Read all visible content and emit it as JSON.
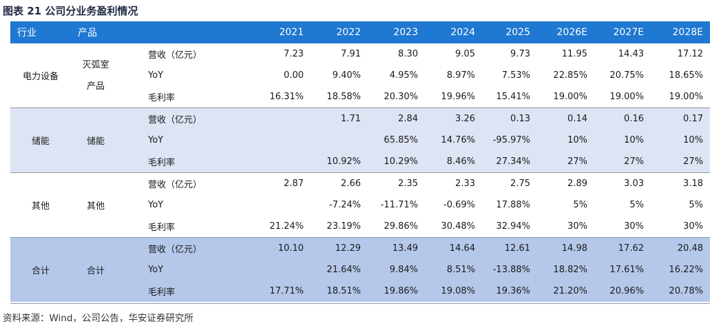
{
  "title": "图表 21  公司分业务盈利情况",
  "headers": {
    "industry": "行业",
    "product": "产品",
    "years": [
      "2021",
      "2022",
      "2023",
      "2024",
      "2025",
      "2026E",
      "2027E",
      "2028E"
    ]
  },
  "groups": [
    {
      "industry": "电力设备",
      "product_lines": [
        "灭弧室",
        "产品"
      ],
      "rows": [
        {
          "metric": "营收（亿元）",
          "values": [
            "7.23",
            "7.91",
            "8.30",
            "9.05",
            "9.73",
            "11.95",
            "14.43",
            "17.12"
          ]
        },
        {
          "metric": "YoY",
          "values": [
            "0.00",
            "9.40%",
            "4.95%",
            "8.97%",
            "7.53%",
            "22.85%",
            "20.75%",
            "18.65%"
          ]
        },
        {
          "metric": "毛利率",
          "values": [
            "16.31%",
            "18.58%",
            "20.30%",
            "19.96%",
            "15.41%",
            "19.00%",
            "19.00%",
            "19.00%"
          ]
        }
      ]
    },
    {
      "industry": "储能",
      "product": "储能",
      "rows": [
        {
          "metric": "营收（亿元）",
          "values": [
            "",
            "1.71",
            "2.84",
            "3.26",
            "0.13",
            "0.14",
            "0.16",
            "0.17"
          ]
        },
        {
          "metric": "YoY",
          "values": [
            "",
            "",
            "65.85%",
            "14.76%",
            "-95.97%",
            "10%",
            "10%",
            "10%"
          ]
        },
        {
          "metric": "毛利率",
          "values": [
            "",
            "10.92%",
            "10.29%",
            "8.46%",
            "27.34%",
            "27%",
            "27%",
            "27%"
          ]
        }
      ]
    },
    {
      "industry": "其他",
      "product": "其他",
      "rows": [
        {
          "metric": "营收（亿元）",
          "values": [
            "2.87",
            "2.66",
            "2.35",
            "2.33",
            "2.75",
            "2.89",
            "3.03",
            "3.18"
          ]
        },
        {
          "metric": "YoY",
          "values": [
            "",
            "-7.24%",
            "-11.71%",
            "-0.69%",
            "17.88%",
            "5%",
            "5%",
            "5%"
          ]
        },
        {
          "metric": "毛利率",
          "values": [
            "21.24%",
            "23.19%",
            "29.86%",
            "30.48%",
            "32.94%",
            "30%",
            "30%",
            "30%"
          ]
        }
      ]
    },
    {
      "industry": "合计",
      "product": "合计",
      "rows": [
        {
          "metric": "营收（亿元）",
          "values": [
            "10.10",
            "12.29",
            "13.49",
            "14.64",
            "12.61",
            "14.98",
            "17.62",
            "20.48"
          ]
        },
        {
          "metric": "YoY",
          "values": [
            "",
            "21.64%",
            "9.84%",
            "8.51%",
            "-13.88%",
            "18.82%",
            "17.61%",
            "16.22%"
          ]
        },
        {
          "metric": "毛利率",
          "values": [
            "17.71%",
            "18.51%",
            "19.86%",
            "19.08%",
            "19.36%",
            "21.20%",
            "20.96%",
            "20.78%"
          ]
        }
      ]
    }
  ],
  "source": "资料来源：Wind，公司公告，华安证券研究所"
}
